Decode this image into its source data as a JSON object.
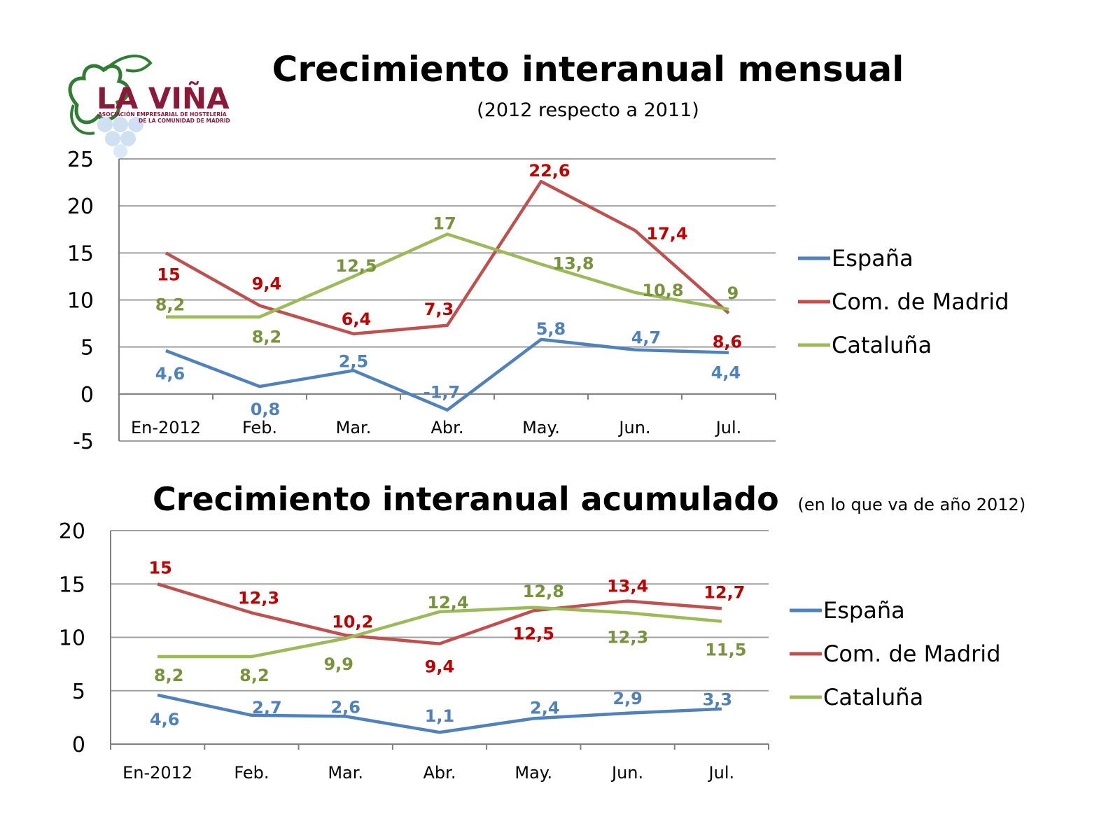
{
  "logo": {
    "name": "LA VIÑA",
    "tagline_1": "ASOCIACIÓN EMPRESARIAL DE HOSTELERÍA",
    "tagline_2": "DE LA COMUNIDAD DE MADRID"
  },
  "colors": {
    "espana": "#4f81bd",
    "madrid": "#c0504d",
    "cataluna": "#9bbb59",
    "madrid_label": "#c00000",
    "espana_label": "#4f81bd",
    "cataluna_label": "#77933c",
    "grid": "#a0a0a0"
  },
  "chart_data": [
    {
      "type": "line",
      "title": "Crecimiento interanual mensual",
      "subtitle": "(2012 respecto a 2011)",
      "categories": [
        "En-2012",
        "Feb.",
        "Mar.",
        "Abr.",
        "May.",
        "Jun.",
        "Jul."
      ],
      "ylim": [
        -5,
        25
      ],
      "yticks": [
        "25",
        "20",
        "15",
        "10",
        "5",
        "0",
        "-5"
      ],
      "grid": true,
      "legend": "right",
      "series": [
        {
          "name": "España",
          "values": [
            4.6,
            0.8,
            2.5,
            -1.7,
            5.8,
            4.7,
            4.4
          ],
          "labels": [
            "4,6",
            "0,8",
            "2,5",
            "-1,7",
            "5,8",
            "4,7",
            "4,4"
          ]
        },
        {
          "name": "Com. de Madrid",
          "values": [
            15,
            9.4,
            6.4,
            7.3,
            22.6,
            17.4,
            8.6
          ],
          "labels": [
            "15",
            "9,4",
            "6,4",
            "7,3",
            "22,6",
            "17,4",
            "8,6"
          ]
        },
        {
          "name": "Cataluña",
          "values": [
            8.2,
            8.2,
            12.5,
            17,
            13.8,
            10.8,
            9
          ],
          "labels": [
            "8,2",
            "8,2",
            "12,5",
            "17",
            "13,8",
            "10,8",
            "9"
          ]
        }
      ]
    },
    {
      "type": "line",
      "title": "Crecimiento interanual acumulado",
      "subtitle": "(en lo que va de año 2012)",
      "categories": [
        "En-2012",
        "Feb.",
        "Mar.",
        "Abr.",
        "May.",
        "Jun.",
        "Jul."
      ],
      "ylim": [
        0,
        20
      ],
      "yticks": [
        "20",
        "15",
        "10",
        "5",
        "0"
      ],
      "grid": true,
      "legend": "right",
      "series": [
        {
          "name": "España",
          "values": [
            4.6,
            2.7,
            2.6,
            1.1,
            2.4,
            2.9,
            3.3
          ],
          "labels": [
            "4,6",
            "2,7",
            "2,6",
            "1,1",
            "2,4",
            "2,9",
            "3,3"
          ]
        },
        {
          "name": "Com. de Madrid",
          "values": [
            15,
            12.3,
            10.2,
            9.4,
            12.5,
            13.4,
            12.7
          ],
          "labels": [
            "15",
            "12,3",
            "10,2",
            "9,4",
            "12,5",
            "13,4",
            "12,7"
          ]
        },
        {
          "name": "Cataluña",
          "values": [
            8.2,
            8.2,
            9.9,
            12.4,
            12.8,
            12.3,
            11.5
          ],
          "labels": [
            "8,2",
            "8,2",
            "9,9",
            "12,4",
            "12,8",
            "12,3",
            "11,5"
          ]
        }
      ]
    }
  ]
}
